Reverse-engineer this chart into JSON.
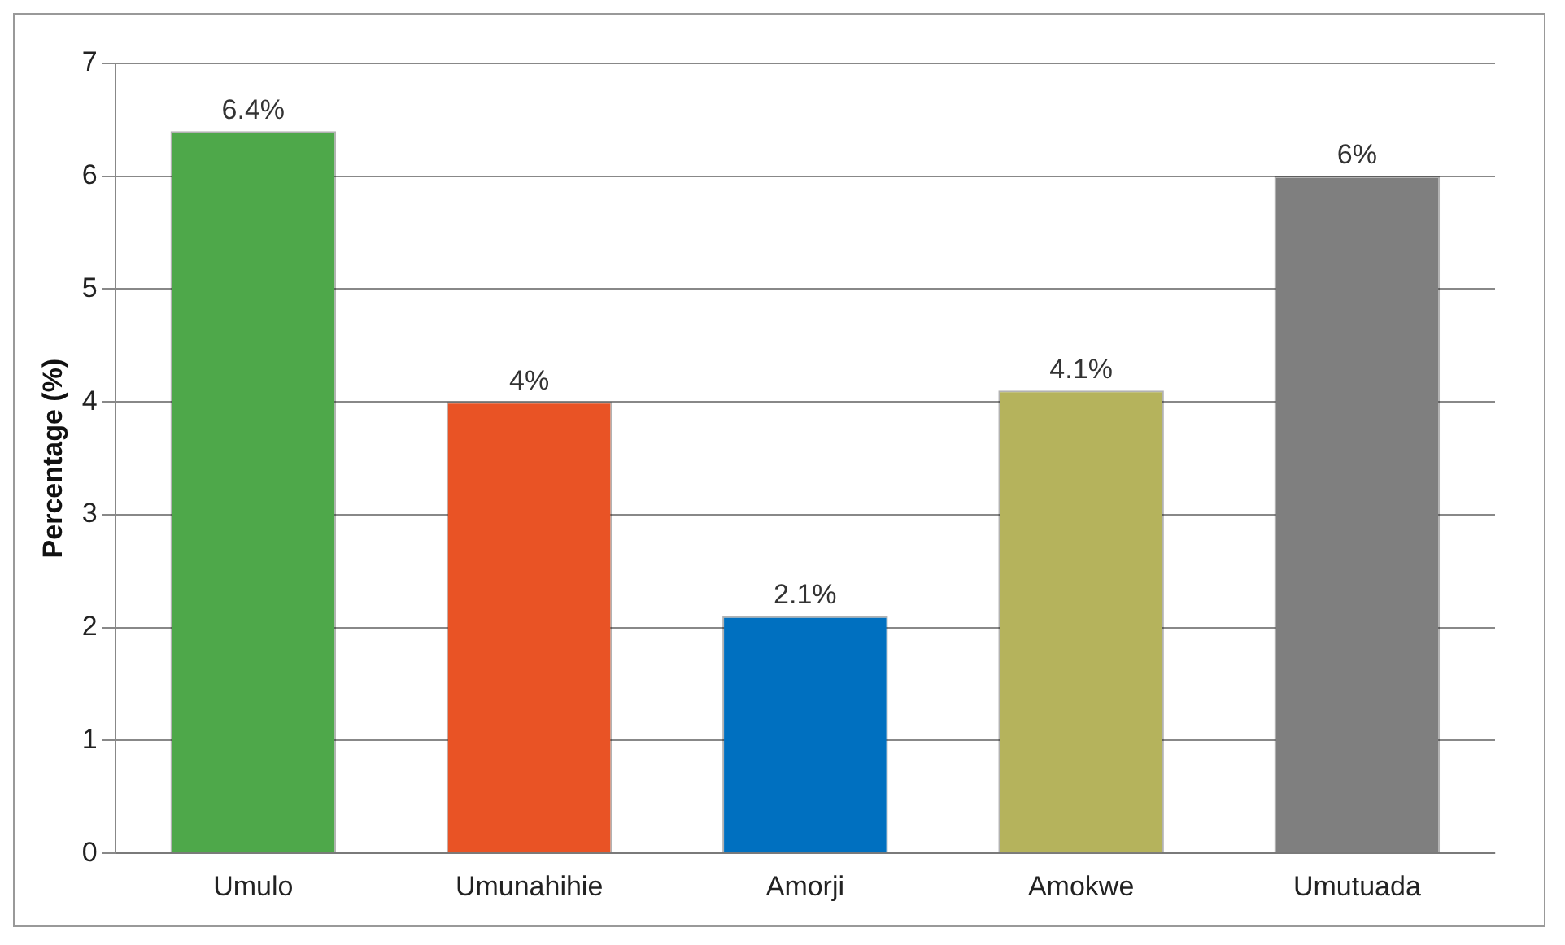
{
  "chart_data": {
    "type": "bar",
    "ylabel": "Percentage (%)",
    "categories": [
      "Umulo",
      "Umunahihie",
      "Amorji",
      "Amokwe",
      "Umutuada"
    ],
    "values": [
      6.4,
      4,
      2.1,
      4.1,
      6
    ],
    "colors": [
      "#4ea84a",
      "#e95325",
      "#0070c0",
      "#b5b35c",
      "#7f7f7f"
    ],
    "value_labels": [
      "6.4%",
      "4%",
      "2.1%",
      "4.1%",
      "6%"
    ],
    "ylim": [
      0,
      7
    ],
    "yticks": [
      0,
      1,
      2,
      3,
      4,
      5,
      6,
      7
    ],
    "grid": "y",
    "legend": false
  }
}
